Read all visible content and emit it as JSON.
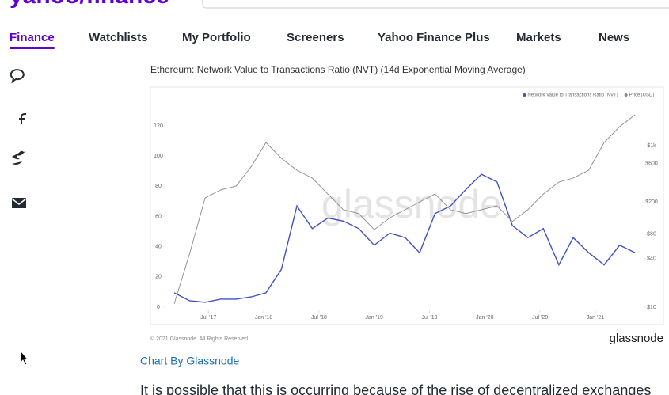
{
  "header": {
    "logo": "yahoo/finance",
    "nav": [
      "Finance",
      "Watchlists",
      "My Portfolio",
      "Screeners",
      "Yahoo Finance Plus",
      "Markets",
      "News"
    ]
  },
  "chart_data": {
    "type": "line",
    "title": "Ethereum: Network Value to Transactions Ratio (NVT) (14d Exponential Moving Average)",
    "watermark": "glassnode",
    "copyright": "© 2021 Glassnode. All Rights Reserved",
    "brand": "glassnode",
    "x": [
      2017.19,
      2017.33,
      2017.47,
      2017.61,
      2017.75,
      2017.89,
      2018.02,
      2018.16,
      2018.3,
      2018.44,
      2018.58,
      2018.72,
      2018.86,
      2019.0,
      2019.14,
      2019.28,
      2019.41,
      2019.55,
      2019.69,
      2019.83,
      2019.97,
      2020.11,
      2020.25,
      2020.39,
      2020.53,
      2020.67,
      2020.8,
      2020.94,
      2021.08,
      2021.22,
      2021.36
    ],
    "xlim": [
      2017.14,
      2021.43
    ],
    "xticks": [
      {
        "value": 2017.5,
        "label": "Jul '17"
      },
      {
        "value": 2018.0,
        "label": "Jan '18"
      },
      {
        "value": 2018.5,
        "label": "Jul '18"
      },
      {
        "value": 2019.0,
        "label": "Jan '19"
      },
      {
        "value": 2019.5,
        "label": "Jul '19"
      },
      {
        "value": 2020.0,
        "label": "Jan '20"
      },
      {
        "value": 2020.5,
        "label": "Jul '20"
      },
      {
        "value": 2021.0,
        "label": "Jan '21"
      }
    ],
    "ylim": [
      0,
      130
    ],
    "yticks": [
      0,
      20,
      40,
      60,
      80,
      100,
      120
    ],
    "y2lim": [
      10,
      2700
    ],
    "y2scale": "log",
    "y2ticks": [
      {
        "value": 10,
        "label": "$10"
      },
      {
        "value": 40,
        "label": "$40"
      },
      {
        "value": 80,
        "label": "$80"
      },
      {
        "value": 200,
        "label": "$200"
      },
      {
        "value": 600,
        "label": "$600"
      },
      {
        "value": 1000,
        "label": "$1k"
      }
    ],
    "legend": "top-right",
    "series": [
      {
        "name": "Network Value to Transactions Ratio (NVT)",
        "color": "#3f51c6",
        "axis": "y",
        "values": [
          9.5,
          4.2,
          3.2,
          5.3,
          5.3,
          6.8,
          9.5,
          25,
          67,
          52,
          59,
          57,
          52,
          41,
          49,
          46,
          36,
          62,
          67,
          78,
          88,
          83,
          54,
          46,
          52,
          28,
          46,
          36,
          28,
          41,
          36
        ]
      },
      {
        "name": "Price [USD]",
        "color": "#8a8a8a",
        "axis": "y2",
        "values": [
          11,
          46,
          225,
          283,
          316,
          556,
          1094,
          697,
          497,
          396,
          252,
          161,
          144,
          91,
          128,
          161,
          201,
          252,
          161,
          144,
          161,
          180,
          115,
          161,
          252,
          354,
          396,
          497,
          1094,
          1718,
          2410
        ]
      }
    ]
  },
  "link": "Chart By Glassnode",
  "paragraph": "It is possible that this is occurring because of the rise of decentralized exchanges"
}
